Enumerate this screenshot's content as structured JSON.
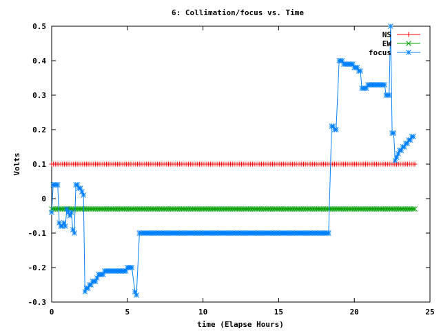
{
  "chart_data": {
    "type": "line",
    "title": "6: Collimation/focus vs. Time",
    "xlabel": "time (Elapse Hours)",
    "ylabel": "Volts",
    "xlim": [
      0,
      25
    ],
    "ylim": [
      -0.3,
      0.5
    ],
    "x_ticks": [
      0,
      5,
      10,
      15,
      20,
      25
    ],
    "x_tick_labels": [
      "0",
      "5",
      "10",
      "15",
      "20",
      "25"
    ],
    "y_ticks": [
      -0.3,
      -0.2,
      -0.1,
      0,
      0.1,
      0.2,
      0.3,
      0.4,
      0.5
    ],
    "y_tick_labels": [
      "-0.3",
      "-0.2",
      "-0.1",
      "0",
      "0.1",
      "0.2",
      "0.3",
      "0.4",
      "0.5"
    ],
    "grid": false,
    "legend": "top-right",
    "series": [
      {
        "name": "NS",
        "color": "#ff0000",
        "marker": "plus",
        "constant": 0.1,
        "x_start": 0,
        "x_end": 24,
        "n_points": 200
      },
      {
        "name": "EW",
        "color": "#00a000",
        "marker": "cross",
        "constant": -0.03,
        "x_start": 0,
        "x_end": 24,
        "n_points": 200
      },
      {
        "name": "focus",
        "color": "#0080ff",
        "marker": "star",
        "points": [
          [
            0,
            -0.04
          ],
          [
            0.1,
            0.04
          ],
          [
            0.2,
            0.04
          ],
          [
            0.3,
            0.04
          ],
          [
            0.4,
            0.04
          ],
          [
            0.5,
            -0.07
          ],
          [
            0.6,
            -0.08
          ],
          [
            0.7,
            -0.08
          ],
          [
            0.8,
            -0.07
          ],
          [
            0.9,
            -0.08
          ],
          [
            1.0,
            -0.03
          ],
          [
            1.1,
            -0.04
          ],
          [
            1.2,
            -0.05
          ],
          [
            1.3,
            -0.04
          ],
          [
            1.4,
            -0.09
          ],
          [
            1.5,
            -0.1
          ],
          [
            1.6,
            0.04
          ],
          [
            1.7,
            0.04
          ],
          [
            1.8,
            0.03
          ],
          [
            1.9,
            0.03
          ],
          [
            2.0,
            0.02
          ],
          [
            2.1,
            0.01
          ],
          [
            2.2,
            -0.27
          ],
          [
            2.3,
            -0.26
          ],
          [
            2.4,
            -0.26
          ],
          [
            2.5,
            -0.25
          ],
          [
            2.6,
            -0.25
          ],
          [
            2.7,
            -0.24
          ],
          [
            2.8,
            -0.24
          ],
          [
            2.9,
            -0.24
          ],
          [
            3.0,
            -0.23
          ],
          [
            3.1,
            -0.22
          ],
          [
            3.2,
            -0.22
          ],
          [
            3.3,
            -0.22
          ],
          [
            3.4,
            -0.22
          ],
          [
            3.5,
            -0.21
          ],
          [
            3.6,
            -0.21
          ],
          [
            3.7,
            -0.21
          ],
          [
            3.8,
            -0.21
          ],
          [
            3.9,
            -0.21
          ],
          [
            4.0,
            -0.21
          ],
          [
            4.1,
            -0.21
          ],
          [
            4.2,
            -0.21
          ],
          [
            4.3,
            -0.21
          ],
          [
            4.4,
            -0.21
          ],
          [
            4.5,
            -0.21
          ],
          [
            4.6,
            -0.21
          ],
          [
            4.7,
            -0.21
          ],
          [
            4.8,
            -0.21
          ],
          [
            4.9,
            -0.21
          ],
          [
            5.0,
            -0.2
          ],
          [
            5.1,
            -0.2
          ],
          [
            5.2,
            -0.2
          ],
          [
            5.3,
            -0.2
          ],
          [
            5.5,
            -0.27
          ],
          [
            5.6,
            -0.28
          ],
          [
            5.8,
            -0.1
          ],
          [
            5.9,
            -0.1
          ],
          [
            6.0,
            -0.1
          ],
          [
            18.2,
            -0.1
          ],
          [
            18.3,
            -0.1
          ],
          [
            18.5,
            0.21
          ],
          [
            18.6,
            0.21
          ],
          [
            18.7,
            0.2
          ],
          [
            18.8,
            0.2
          ],
          [
            19.0,
            0.4
          ],
          [
            19.1,
            0.4
          ],
          [
            19.2,
            0.4
          ],
          [
            19.3,
            0.39
          ],
          [
            19.4,
            0.39
          ],
          [
            19.5,
            0.39
          ],
          [
            19.6,
            0.39
          ],
          [
            19.7,
            0.39
          ],
          [
            19.8,
            0.39
          ],
          [
            19.9,
            0.39
          ],
          [
            20.0,
            0.38
          ],
          [
            20.1,
            0.38
          ],
          [
            20.2,
            0.38
          ],
          [
            20.3,
            0.37
          ],
          [
            20.4,
            0.37
          ],
          [
            20.5,
            0.32
          ],
          [
            20.6,
            0.32
          ],
          [
            20.7,
            0.32
          ],
          [
            20.8,
            0.32
          ],
          [
            20.9,
            0.33
          ],
          [
            21.0,
            0.33
          ],
          [
            21.1,
            0.33
          ],
          [
            21.2,
            0.33
          ],
          [
            21.3,
            0.33
          ],
          [
            21.4,
            0.33
          ],
          [
            21.5,
            0.33
          ],
          [
            21.6,
            0.33
          ],
          [
            21.7,
            0.33
          ],
          [
            21.8,
            0.33
          ],
          [
            21.9,
            0.33
          ],
          [
            22.0,
            0.33
          ],
          [
            22.1,
            0.3
          ],
          [
            22.2,
            0.3
          ],
          [
            22.3,
            0.3
          ],
          [
            22.4,
            0.5
          ],
          [
            22.5,
            0.19
          ],
          [
            22.6,
            0.19
          ],
          [
            22.7,
            0.11
          ],
          [
            22.8,
            0.12
          ],
          [
            22.9,
            0.13
          ],
          [
            23.0,
            0.14
          ],
          [
            23.1,
            0.14
          ],
          [
            23.2,
            0.15
          ],
          [
            23.3,
            0.15
          ],
          [
            23.4,
            0.16
          ],
          [
            23.5,
            0.16
          ],
          [
            23.6,
            0.17
          ],
          [
            23.7,
            0.17
          ],
          [
            23.8,
            0.18
          ],
          [
            23.9,
            0.18
          ]
        ],
        "fill_flat_segment": {
          "x_start": 6.0,
          "x_end": 18.3,
          "y": -0.1,
          "step": 0.1
        }
      }
    ]
  }
}
